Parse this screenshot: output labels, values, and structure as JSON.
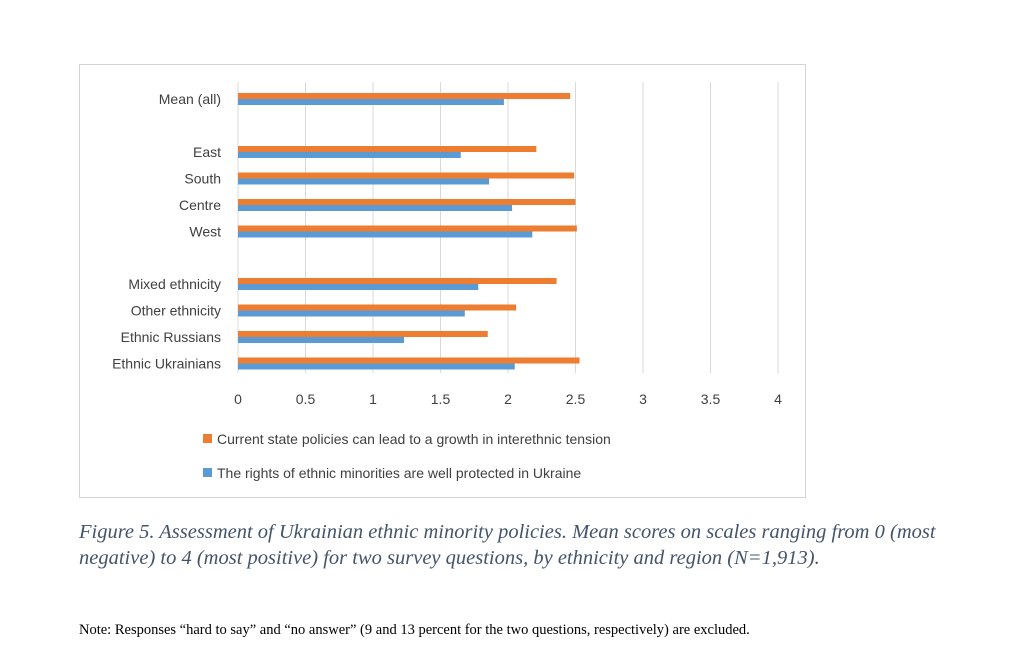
{
  "chart_data": {
    "type": "bar",
    "orientation": "horizontal",
    "categories": [
      "Mean (all)",
      "East",
      "South",
      "Centre",
      "West",
      "Mixed ethnicity",
      "Other ethnicity",
      "Ethnic Russians",
      "Ethnic Ukrainians"
    ],
    "series": [
      {
        "name": "Current state policies can lead to a growth in interethnic tension",
        "color": "#ed7d31",
        "values": [
          2.46,
          2.21,
          2.49,
          2.5,
          2.51,
          2.36,
          2.06,
          1.85,
          2.53
        ]
      },
      {
        "name": "The rights of ethnic minorities are well protected in Ukraine",
        "color": "#5b9bd5",
        "values": [
          1.97,
          1.65,
          1.86,
          2.03,
          2.18,
          1.78,
          1.68,
          1.23,
          2.05
        ]
      }
    ],
    "xlim": [
      0,
      4
    ],
    "xticks": [
      "0",
      "0.5",
      "1",
      "1.5",
      "2",
      "2.5",
      "3",
      "3.5",
      "4"
    ],
    "grid": "vertical",
    "legend_position": "bottom",
    "gridline_color": "#d9d9d9"
  },
  "caption": "Figure 5. Assessment of Ukrainian ethnic minority policies. Mean scores on scales ranging from 0 (most negative) to 4 (most positive) for two survey questions, by ethnicity and region (N=1,913).",
  "note": "Note: Responses “hard to say” and “no answer” (9 and 13 percent for the two questions, respectively) are excluded."
}
